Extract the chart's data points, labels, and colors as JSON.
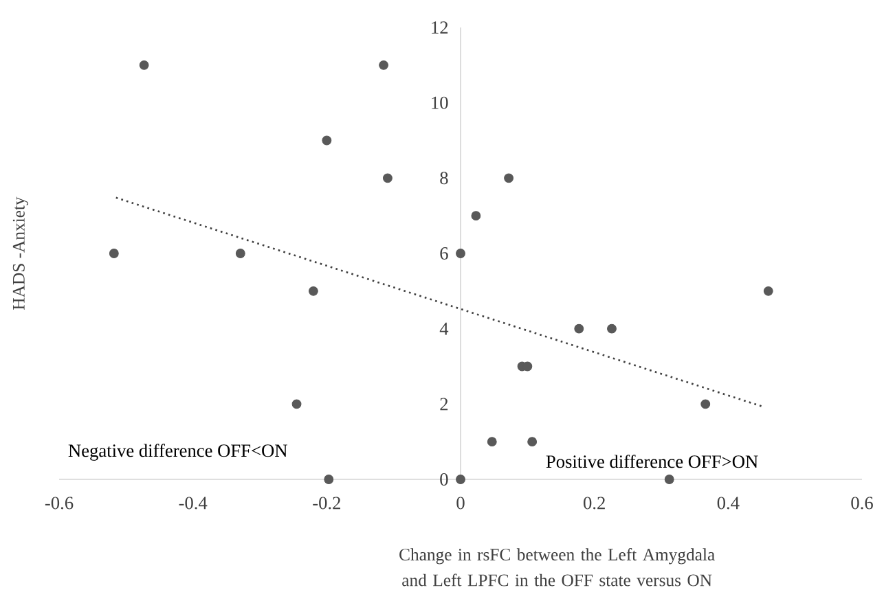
{
  "chart_data": {
    "type": "scatter",
    "xlabel": "Change in rsFC between the Left Amygdala and Left LPFC in the OFF state versus ON",
    "ylabel": "HADS -Anxiety",
    "annotations": [
      "Negative difference OFF<ON",
      "Positive difference OFF>ON"
    ],
    "xlim": [
      -0.6,
      0.6
    ],
    "ylim": [
      0,
      12
    ],
    "xticks": [
      -0.6,
      -0.4,
      -0.2,
      0,
      0.2,
      0.4,
      0.6
    ],
    "yticks": [
      0,
      2,
      4,
      6,
      8,
      10,
      12
    ],
    "marker": "circle",
    "series": [
      {
        "color": "#595959",
        "x": [
          -0.518,
          -0.473,
          -0.329,
          -0.22,
          -0.245,
          -0.2,
          -0.197,
          -0.115,
          -0.109,
          0,
          0,
          0.023,
          0.072,
          0.047,
          0.092,
          0.1,
          0.107,
          0.177,
          0.226,
          0.366,
          0.312,
          0.46
        ],
        "values": [
          6,
          11,
          6,
          5,
          2,
          9,
          0,
          11,
          8,
          6,
          0,
          7,
          8,
          1,
          3,
          3,
          1,
          4,
          4,
          2,
          0,
          5
        ]
      },
      {
        "type": "line",
        "color": "#404040",
        "line_style": "dotted",
        "marker": "none",
        "x": [
          -0.515,
          0.452
        ],
        "values": [
          7.48,
          1.93
        ]
      }
    ]
  }
}
